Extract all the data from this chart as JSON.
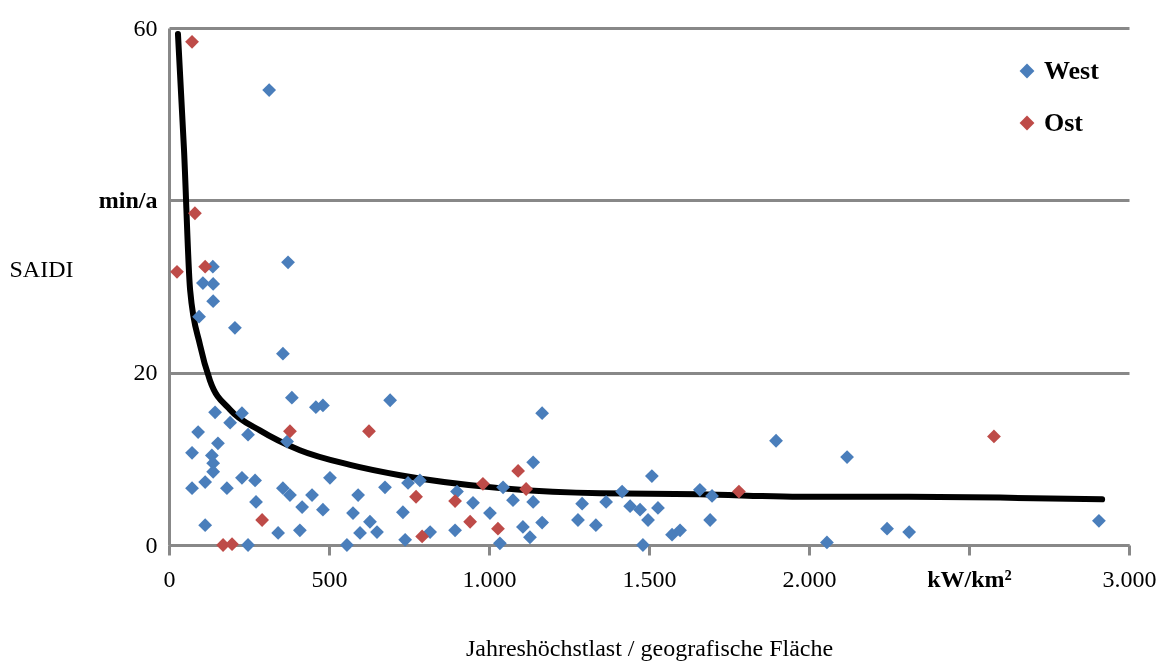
{
  "chart_data": {
    "type": "scatter",
    "xlabel": "Jahreshöchstlast / geografische Fläche",
    "ylabel": "SAIDI",
    "xlim": [
      0,
      3000
    ],
    "xticks": [
      0,
      {
        "value": 500,
        "label": "500"
      },
      {
        "value": 1000,
        "label": "1.000"
      },
      {
        "value": 1500,
        "label": "1.500"
      },
      {
        "value": 2000,
        "label": "2.000"
      },
      {
        "value": 2500,
        "label": "kW/km²"
      },
      {
        "value": 3000,
        "label": "3.000"
      }
    ],
    "ylim": [
      0,
      60
    ],
    "yticks": [
      0,
      20,
      {
        "value": 40,
        "label": "min/a"
      },
      60
    ],
    "grid": "y",
    "legend": "top right",
    "marker": "diamond",
    "series": [
      {
        "name": "West",
        "color": "#4a7ebb",
        "type": "scatter",
        "x": [
          313,
          372,
          137,
          106,
          138,
          138,
          94,
          206,
          356,
          384,
          691,
          459,
          481,
          1166,
          144,
          228,
          191,
          91,
          153,
          247,
          369,
          72,
          134,
          138,
          138,
          1138,
          72,
          113,
          181,
          228,
          269,
          272,
          113,
          247,
          356,
          378,
          341,
          409,
          416,
          447,
          481,
          503,
          556,
          591,
          575,
          597,
          628,
          650,
          675,
          731,
          738,
          784,
          747,
          816,
          900,
          950,
          894,
          1003,
          1044,
          1075,
          1034,
          1106,
          1138,
          1128,
          1166,
          1509,
          1897,
          2119,
          1416,
          1291,
          1366,
          1659,
          1697,
          1278,
          1334,
          1441,
          1472,
          1528,
          1497,
          1481,
          1572,
          1597,
          1691,
          2056,
          2244,
          2313,
          2906
        ],
        "values": [
          52.8,
          32.8,
          32.3,
          30.4,
          30.3,
          28.3,
          26.5,
          25.2,
          22.2,
          17.1,
          16.8,
          16.0,
          16.2,
          15.3,
          15.4,
          15.3,
          14.2,
          13.1,
          11.8,
          12.8,
          12.0,
          10.7,
          10.4,
          9.5,
          8.5,
          9.6,
          6.6,
          7.3,
          6.6,
          7.8,
          7.5,
          5.0,
          2.3,
          0,
          6.6,
          5.8,
          1.4,
          1.7,
          4.4,
          5.8,
          4.1,
          7.8,
          0,
          5.8,
          3.7,
          1.4,
          2.7,
          1.5,
          6.7,
          3.8,
          0.6,
          7.5,
          7.2,
          1.5,
          6.2,
          4.9,
          1.7,
          3.7,
          6.7,
          5.2,
          0.2,
          2.1,
          5.0,
          0.9,
          2.6,
          8.0,
          12.1,
          10.2,
          6.2,
          4.8,
          5.0,
          6.4,
          5.7,
          2.9,
          2.3,
          4.5,
          4.1,
          4.3,
          2.9,
          0,
          1.2,
          1.7,
          2.9,
          0.3,
          1.9,
          1.5,
          2.8
        ]
      },
      {
        "name": "Ost",
        "color": "#be4b48",
        "type": "scatter",
        "x": [
          72,
          81,
          25,
          113,
          378,
          625,
          291,
          169,
          197,
          772,
          894,
          981,
          941,
          1028,
          1091,
          1116,
          791,
          1781,
          2578
        ],
        "values": [
          58.4,
          38.5,
          31.7,
          32.3,
          13.2,
          13.2,
          2.9,
          0,
          0.1,
          5.6,
          5.1,
          7.1,
          2.7,
          1.9,
          8.6,
          6.5,
          1.0,
          6.2,
          12.6
        ]
      },
      {
        "color": "#000000",
        "type": "line",
        "marker": "none",
        "x": [
          28,
          47,
          66,
          97,
          128,
          191,
          284,
          409,
          566,
          722,
          1034,
          1347,
          1659,
          1972,
          2284,
          2597,
          2916
        ],
        "values": [
          59.3,
          45.8,
          29.6,
          23.2,
          19.1,
          15.7,
          13.3,
          11.0,
          9.3,
          8.1,
          6.6,
          6.0,
          5.9,
          5.6,
          5.6,
          5.5,
          5.3
        ]
      }
    ]
  }
}
